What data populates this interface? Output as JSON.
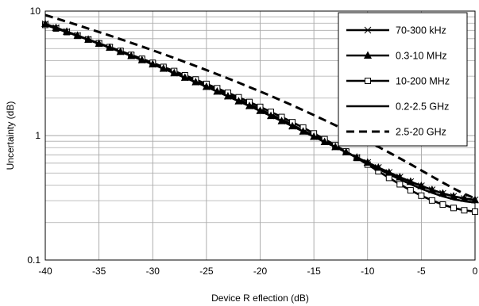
{
  "chart_data": {
    "type": "line",
    "xlabel": "Device R eflection (dB)",
    "ylabel": "Uncertainty (dB)",
    "xlim": [
      -40,
      0
    ],
    "ylim": [
      0.1,
      10
    ],
    "y_scale": "log",
    "grid": true,
    "legend_position": "top-right",
    "x_ticks": [
      -40,
      -35,
      -30,
      -25,
      -20,
      -15,
      -10,
      -5,
      0
    ],
    "x_tick_labels": [
      "-40",
      "-35",
      "-30",
      "-25",
      "-20",
      "-15",
      "-10",
      "-5",
      "0"
    ],
    "y_ticks": [
      0.1,
      1,
      10
    ],
    "y_tick_labels": [
      "0.1",
      "1",
      "10"
    ],
    "x": [
      -40,
      -39,
      -38,
      -37,
      -36,
      -35,
      -34,
      -33,
      -32,
      -31,
      -30,
      -29,
      -28,
      -27,
      -26,
      -25,
      -24,
      -23,
      -22,
      -21,
      -20,
      -19,
      -18,
      -17,
      -16,
      -15,
      -14,
      -13,
      -12,
      -11,
      -10,
      -9,
      -8,
      -7,
      -6,
      -5,
      -4,
      -3,
      -2,
      -1,
      0
    ],
    "series": [
      {
        "name": "70-300 kHz",
        "marker": "x",
        "dash": "solid",
        "values": [
          7.9,
          7.35,
          6.84,
          6.36,
          5.91,
          5.48,
          5.09,
          4.72,
          4.37,
          4.04,
          3.74,
          3.45,
          3.18,
          2.92,
          2.69,
          2.47,
          2.26,
          2.07,
          1.89,
          1.73,
          1.58,
          1.44,
          1.31,
          1.19,
          1.08,
          0.98,
          0.89,
          0.81,
          0.735,
          0.667,
          0.607,
          0.553,
          0.505,
          0.463,
          0.426,
          0.394,
          0.366,
          0.343,
          0.325,
          0.312,
          0.304
        ]
      },
      {
        "name": "0.3-10 MHz",
        "marker": "triangle",
        "dash": "solid",
        "values": [
          7.9,
          7.35,
          6.84,
          6.36,
          5.91,
          5.48,
          5.09,
          4.72,
          4.37,
          4.04,
          3.74,
          3.45,
          3.18,
          2.92,
          2.69,
          2.47,
          2.26,
          2.07,
          1.89,
          1.73,
          1.58,
          1.44,
          1.31,
          1.19,
          1.08,
          0.98,
          0.89,
          0.81,
          0.735,
          0.667,
          0.607,
          0.553,
          0.505,
          0.463,
          0.426,
          0.394,
          0.366,
          0.343,
          0.325,
          0.312,
          0.304
        ]
      },
      {
        "name": "10-200 MHz",
        "marker": "square",
        "dash": "solid",
        "values": [
          7.75,
          7.25,
          6.78,
          6.33,
          5.91,
          5.51,
          5.14,
          4.79,
          4.45,
          4.14,
          3.84,
          3.56,
          3.3,
          3.05,
          2.82,
          2.6,
          2.4,
          2.21,
          2.03,
          1.86,
          1.7,
          1.55,
          1.41,
          1.28,
          1.16,
          1.04,
          0.935,
          0.836,
          0.745,
          0.661,
          0.585,
          0.517,
          0.457,
          0.406,
          0.363,
          0.329,
          0.301,
          0.279,
          0.262,
          0.251,
          0.245
        ]
      },
      {
        "name": "0.2-2.5 GHz",
        "marker": "none",
        "dash": "solid",
        "values": [
          7.85,
          7.31,
          6.8,
          6.33,
          5.89,
          5.47,
          5.08,
          4.72,
          4.38,
          4.06,
          3.76,
          3.48,
          3.22,
          2.97,
          2.74,
          2.52,
          2.32,
          2.13,
          1.95,
          1.78,
          1.63,
          1.48,
          1.35,
          1.22,
          1.1,
          1.0,
          0.9,
          0.815,
          0.735,
          0.663,
          0.598,
          0.54,
          0.489,
          0.445,
          0.407,
          0.374,
          0.347,
          0.325,
          0.308,
          0.297,
          0.29
        ]
      },
      {
        "name": "2.5-20 GHz",
        "marker": "none",
        "dash": "dashed",
        "values": [
          9.3,
          8.75,
          8.22,
          7.72,
          7.24,
          6.79,
          6.36,
          5.95,
          5.56,
          5.19,
          4.84,
          4.51,
          4.2,
          3.9,
          3.62,
          3.36,
          3.11,
          2.88,
          2.66,
          2.45,
          2.26,
          2.08,
          1.91,
          1.75,
          1.6,
          1.46,
          1.33,
          1.21,
          1.1,
          0.995,
          0.9,
          0.812,
          0.731,
          0.656,
          0.588,
          0.525,
          0.469,
          0.419,
          0.376,
          0.34,
          0.313
        ]
      }
    ]
  }
}
